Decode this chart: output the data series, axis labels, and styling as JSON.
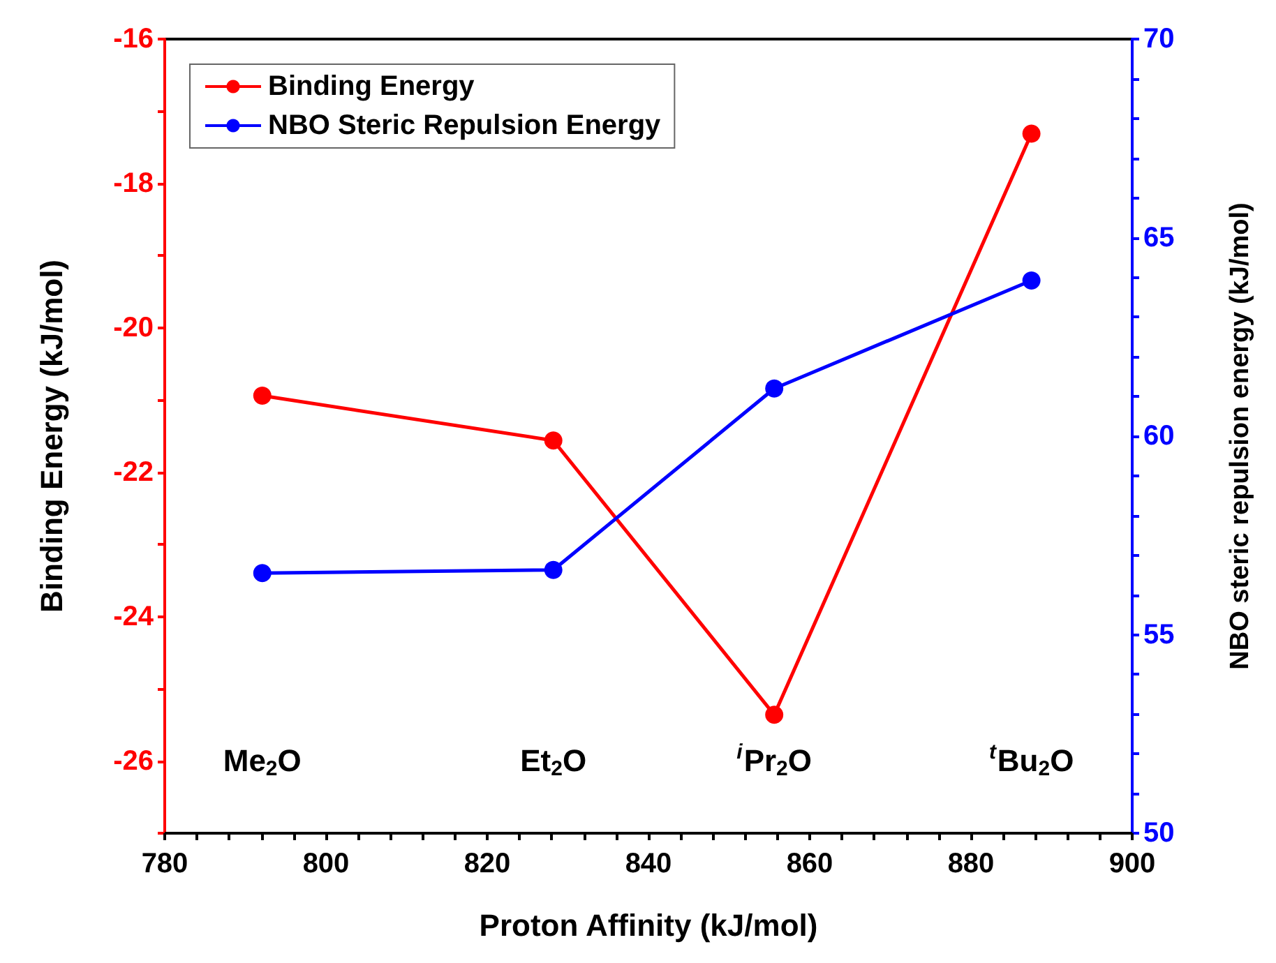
{
  "chart_data": {
    "type": "line",
    "xlabel": "Proton Affinity (kJ/mol)",
    "ylabel": "Binding Energy (kJ/mol)",
    "y2label": "NBO steric repulsion energy (kJ/mol)",
    "x": [
      792.1,
      828.2,
      855.6,
      887.5
    ],
    "series": [
      {
        "name": "Binding Energy",
        "color": "#ff0000",
        "values": [
          -20.94,
          -21.56,
          -25.36,
          -17.31
        ]
      },
      {
        "name": "NBO Steric Repulsion Energy",
        "color": "#0000ff",
        "axis": "y2",
        "values": [
          56.55,
          56.63,
          61.2,
          63.92
        ]
      }
    ],
    "xlim": [
      780,
      900
    ],
    "xticks": [
      780,
      {
        "value": 784,
        "label": null
      },
      {
        "value": 788,
        "label": null
      },
      {
        "value": 792,
        "label": null
      },
      {
        "value": 796,
        "label": null
      },
      800,
      {
        "value": 804,
        "label": null
      },
      {
        "value": 808,
        "label": null
      },
      {
        "value": 812,
        "label": null
      },
      {
        "value": 816,
        "label": null
      },
      820,
      {
        "value": 824,
        "label": null
      },
      {
        "value": 828,
        "label": null
      },
      {
        "value": 832,
        "label": null
      },
      {
        "value": 836,
        "label": null
      },
      840,
      {
        "value": 844,
        "label": null
      },
      {
        "value": 848,
        "label": null
      },
      {
        "value": 852,
        "label": null
      },
      {
        "value": 856,
        "label": null
      },
      860,
      {
        "value": 864,
        "label": null
      },
      {
        "value": 868,
        "label": null
      },
      {
        "value": 872,
        "label": null
      },
      {
        "value": 876,
        "label": null
      },
      880,
      {
        "value": 884,
        "label": null
      },
      {
        "value": 888,
        "label": null
      },
      {
        "value": 892,
        "label": null
      },
      {
        "value": 896,
        "label": null
      },
      900
    ],
    "ylim": [
      -27,
      -16
    ],
    "yticks": [
      {
        "value": -27,
        "label": null
      },
      -26,
      {
        "value": -25,
        "label": null
      },
      -24,
      {
        "value": -23,
        "label": null
      },
      -22,
      {
        "value": -21,
        "label": null
      },
      -20,
      {
        "value": -19,
        "label": null
      },
      -18,
      {
        "value": -17,
        "label": null
      },
      -16
    ],
    "y2lim": [
      50,
      70
    ],
    "y2ticks": [
      50,
      {
        "value": 51,
        "label": null
      },
      {
        "value": 52,
        "label": null
      },
      {
        "value": 53,
        "label": null
      },
      {
        "value": 54,
        "label": null
      },
      55,
      {
        "value": 56,
        "label": null
      },
      {
        "value": 57,
        "label": null
      },
      {
        "value": 58,
        "label": null
      },
      {
        "value": 59,
        "label": null
      },
      60,
      {
        "value": 61,
        "label": null
      },
      {
        "value": 62,
        "label": null
      },
      {
        "value": 63,
        "label": null
      },
      {
        "value": 64,
        "label": null
      },
      65,
      {
        "value": 66,
        "label": null
      },
      {
        "value": 67,
        "label": null
      },
      {
        "value": 68,
        "label": null
      },
      {
        "value": 69,
        "label": null
      },
      70
    ],
    "annotations": [
      "Me$_{2}$O",
      "Et$_{2}$O",
      "$^{i}$Pr$_{2}$O",
      "$^{t}$Bu$_{2}$O"
    ],
    "legend": "top left",
    "marker": "circle",
    "line_style": "solid",
    "grid": false
  }
}
